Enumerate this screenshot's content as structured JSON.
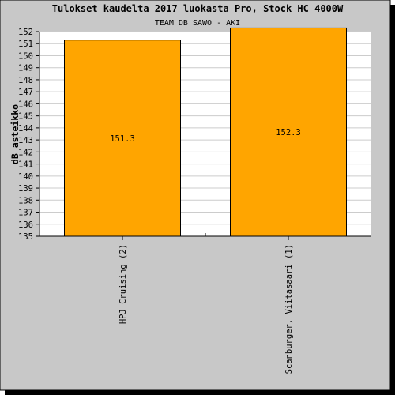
{
  "chart_data": {
    "type": "bar",
    "title": "Tulokset kaudelta 2017 luokasta Pro, Stock HC 4000W",
    "subtitle": "TEAM DB SAWO - AKI",
    "xlabel": "",
    "ylabel": "dB asteikko",
    "categories": [
      "HPJ Cruising (2)",
      "Scanburger, Viitasaari (1)"
    ],
    "values": [
      151.3,
      152.3
    ],
    "value_labels": [
      "151.3",
      "152.3"
    ],
    "ylim": [
      135,
      152
    ],
    "yticks": [
      135,
      136,
      137,
      138,
      139,
      140,
      141,
      142,
      143,
      144,
      145,
      146,
      147,
      148,
      149,
      150,
      151,
      152
    ],
    "grid": true,
    "legend": "none",
    "colors": {
      "background": "#c8c8c8",
      "plot": "#ffffff",
      "bar": "#ffa500",
      "bar_edge": "#000000",
      "grid": "#cccccc"
    }
  }
}
